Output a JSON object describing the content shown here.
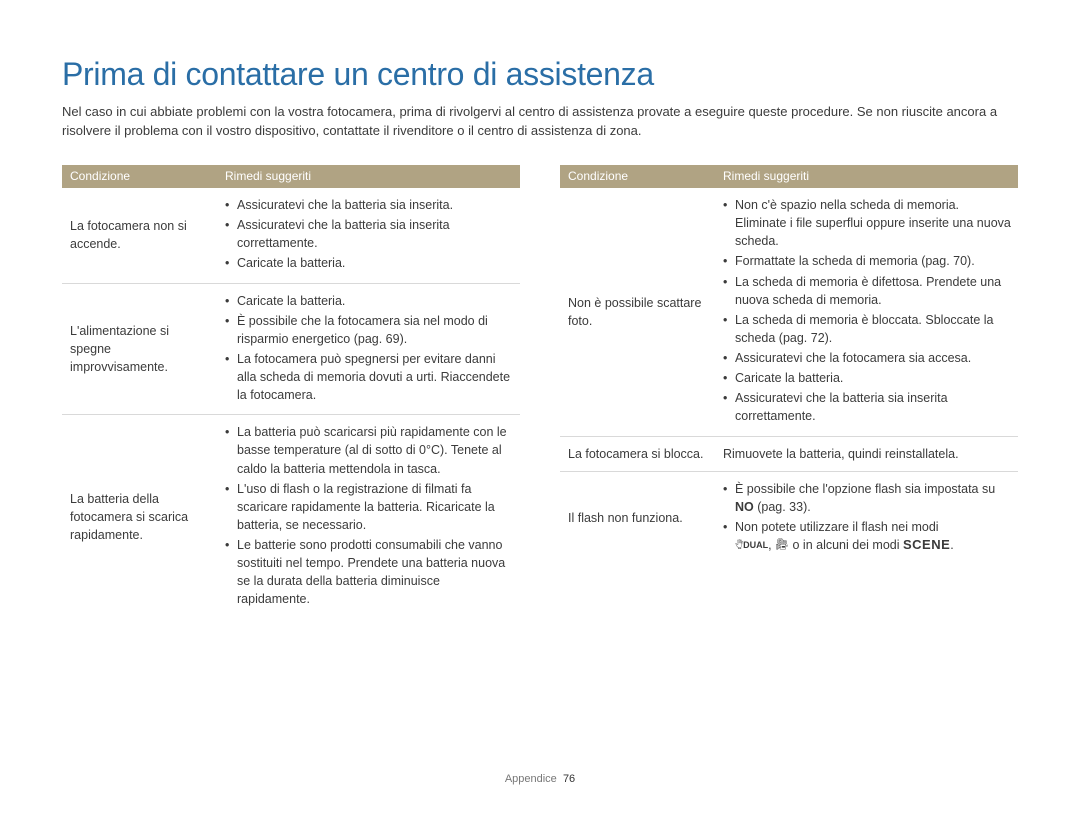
{
  "title": "Prima di contattare un centro di assistenza",
  "intro": "Nel caso in cui abbiate problemi con la vostra fotocamera, prima di rivolgervi al centro di assistenza provate a eseguire queste procedure. Se non riuscite ancora a risolvere il problema con il vostro dispositivo, contattate il rivenditore o il centro di assistenza di zona.",
  "headers": {
    "condition": "Condizione",
    "remedies": "Rimedi suggeriti"
  },
  "left_table": [
    {
      "condition": "La fotocamera non si accende.",
      "remedies": [
        "Assicuratevi che la batteria sia inserita.",
        "Assicuratevi che la batteria sia inserita correttamente.",
        "Caricate la batteria."
      ]
    },
    {
      "condition": "L'alimentazione si spegne improvvisamente.",
      "remedies": [
        "Caricate la batteria.",
        "È possibile che la fotocamera sia nel modo di risparmio energetico (pag. 69).",
        "La fotocamera può spegnersi per evitare danni alla scheda di memoria dovuti a urti. Riaccendete la fotocamera."
      ]
    },
    {
      "condition": "La batteria della fotocamera si scarica rapidamente.",
      "remedies": [
        "La batteria può scaricarsi più rapidamente con le basse temperature (al di sotto di 0°C). Tenete al caldo la batteria mettendola in tasca.",
        "L'uso di flash o la registrazione di filmati fa scaricare rapidamente la batteria. Ricaricate la batteria, se necessario.",
        "Le batterie sono prodotti consumabili che vanno sostituiti nel tempo. Prendete una batteria nuova se la durata della batteria diminuisce rapidamente."
      ]
    }
  ],
  "right_table": [
    {
      "condition": "Non è possibile scattare foto.",
      "remedies": [
        "Non c'è spazio nella scheda di memoria. Eliminate i file superflui oppure inserite una nuova scheda.",
        "Formattate la scheda di memoria (pag. 70).",
        "La scheda di memoria è difettosa. Prendete una nuova scheda di memoria.",
        "La scheda di memoria è bloccata. Sbloccate la scheda (pag. 72).",
        "Assicuratevi che la fotocamera sia accesa.",
        "Caricate la batteria.",
        "Assicuratevi che la batteria sia inserita correttamente."
      ]
    },
    {
      "condition": "La fotocamera si blocca.",
      "remedies_text": "Rimuovete la batteria, quindi reinstallatela."
    },
    {
      "condition": "Il flash non funziona.",
      "remedies_special": true,
      "r1_a": "È possibile che l'opzione flash sia impostata su ",
      "r1_b": "NO",
      "r1_c": " (pag. 33).",
      "r2": "Non potete utilizzare il flash nei modi ",
      "r3_a": ", ",
      "r3_b": " o in alcuni dei modi ",
      "scene": "SCENE",
      "r3_c": "."
    }
  ],
  "footer": {
    "section": "Appendice",
    "page": "76"
  },
  "colors": {
    "title": "#2a6ea6",
    "header_bg": "#b0a383",
    "header_fg": "#ffffff",
    "text": "#3b3b3b",
    "border": "#d9d9d9"
  }
}
